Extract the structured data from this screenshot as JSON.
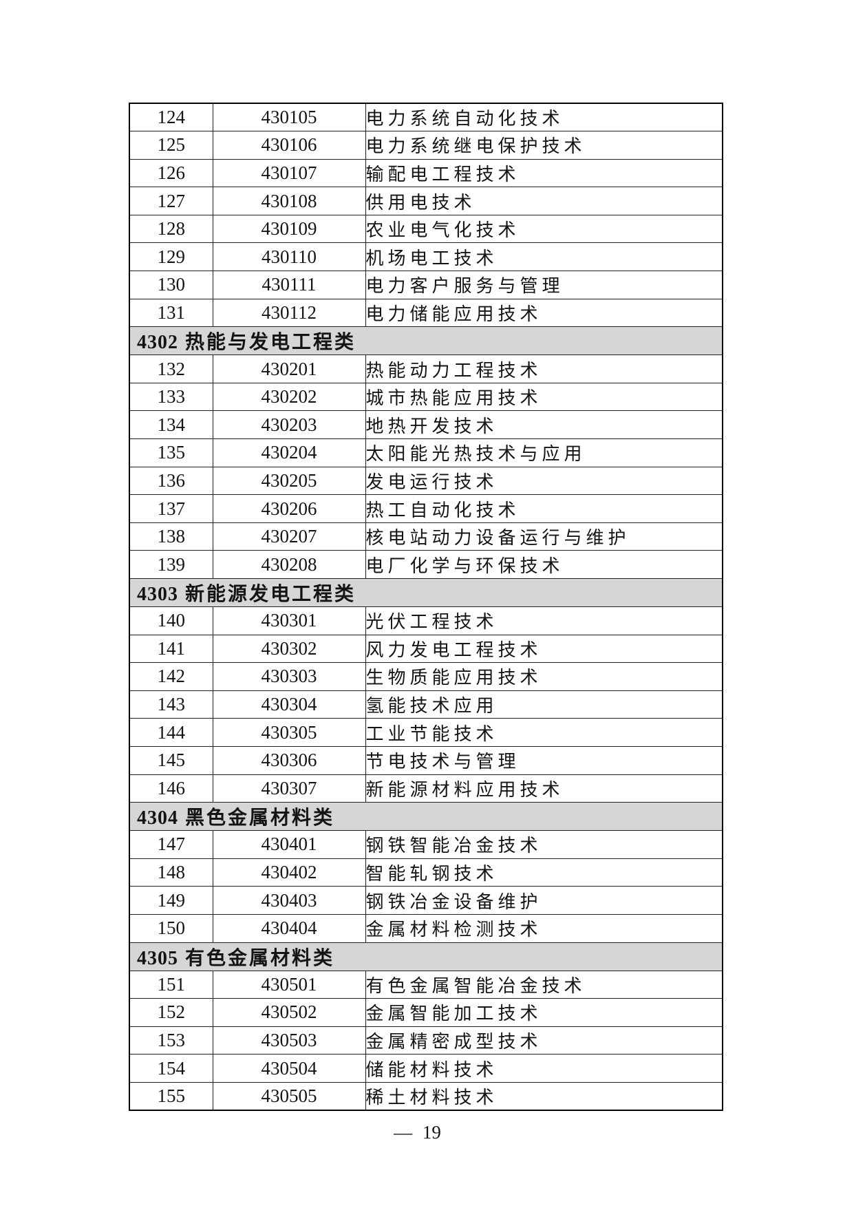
{
  "colors": {
    "section_header_bg": "#d6d6d6",
    "border": "#000000",
    "text": "#141414"
  },
  "footer": {
    "text": "— 19"
  },
  "table": {
    "groups": [
      {
        "header": null,
        "rows": [
          {
            "no": "124",
            "code": "430105",
            "name": "电力系统自动化技术"
          },
          {
            "no": "125",
            "code": "430106",
            "name": "电力系统继电保护技术"
          },
          {
            "no": "126",
            "code": "430107",
            "name": "输配电工程技术"
          },
          {
            "no": "127",
            "code": "430108",
            "name": "供用电技术"
          },
          {
            "no": "128",
            "code": "430109",
            "name": "农业电气化技术"
          },
          {
            "no": "129",
            "code": "430110",
            "name": "机场电工技术"
          },
          {
            "no": "130",
            "code": "430111",
            "name": "电力客户服务与管理"
          },
          {
            "no": "131",
            "code": "430112",
            "name": "电力储能应用技术"
          }
        ]
      },
      {
        "header": {
          "code": "4302",
          "title": "热能与发电工程类"
        },
        "rows": [
          {
            "no": "132",
            "code": "430201",
            "name": "热能动力工程技术"
          },
          {
            "no": "133",
            "code": "430202",
            "name": "城市热能应用技术"
          },
          {
            "no": "134",
            "code": "430203",
            "name": "地热开发技术"
          },
          {
            "no": "135",
            "code": "430204",
            "name": "太阳能光热技术与应用"
          },
          {
            "no": "136",
            "code": "430205",
            "name": "发电运行技术"
          },
          {
            "no": "137",
            "code": "430206",
            "name": "热工自动化技术"
          },
          {
            "no": "138",
            "code": "430207",
            "name": "核电站动力设备运行与维护"
          },
          {
            "no": "139",
            "code": "430208",
            "name": "电厂化学与环保技术"
          }
        ]
      },
      {
        "header": {
          "code": "4303",
          "title": "新能源发电工程类"
        },
        "rows": [
          {
            "no": "140",
            "code": "430301",
            "name": "光伏工程技术"
          },
          {
            "no": "141",
            "code": "430302",
            "name": "风力发电工程技术"
          },
          {
            "no": "142",
            "code": "430303",
            "name": "生物质能应用技术"
          },
          {
            "no": "143",
            "code": "430304",
            "name": "氢能技术应用"
          },
          {
            "no": "144",
            "code": "430305",
            "name": "工业节能技术"
          },
          {
            "no": "145",
            "code": "430306",
            "name": "节电技术与管理"
          },
          {
            "no": "146",
            "code": "430307",
            "name": "新能源材料应用技术"
          }
        ]
      },
      {
        "header": {
          "code": "4304",
          "title": "黑色金属材料类"
        },
        "rows": [
          {
            "no": "147",
            "code": "430401",
            "name": "钢铁智能冶金技术"
          },
          {
            "no": "148",
            "code": "430402",
            "name": "智能轧钢技术"
          },
          {
            "no": "149",
            "code": "430403",
            "name": "钢铁冶金设备维护"
          },
          {
            "no": "150",
            "code": "430404",
            "name": "金属材料检测技术"
          }
        ]
      },
      {
        "header": {
          "code": "4305",
          "title": "有色金属材料类"
        },
        "rows": [
          {
            "no": "151",
            "code": "430501",
            "name": "有色金属智能冶金技术"
          },
          {
            "no": "152",
            "code": "430502",
            "name": "金属智能加工技术"
          },
          {
            "no": "153",
            "code": "430503",
            "name": "金属精密成型技术"
          },
          {
            "no": "154",
            "code": "430504",
            "name": "储能材料技术"
          },
          {
            "no": "155",
            "code": "430505",
            "name": "稀土材料技术"
          }
        ]
      }
    ]
  }
}
